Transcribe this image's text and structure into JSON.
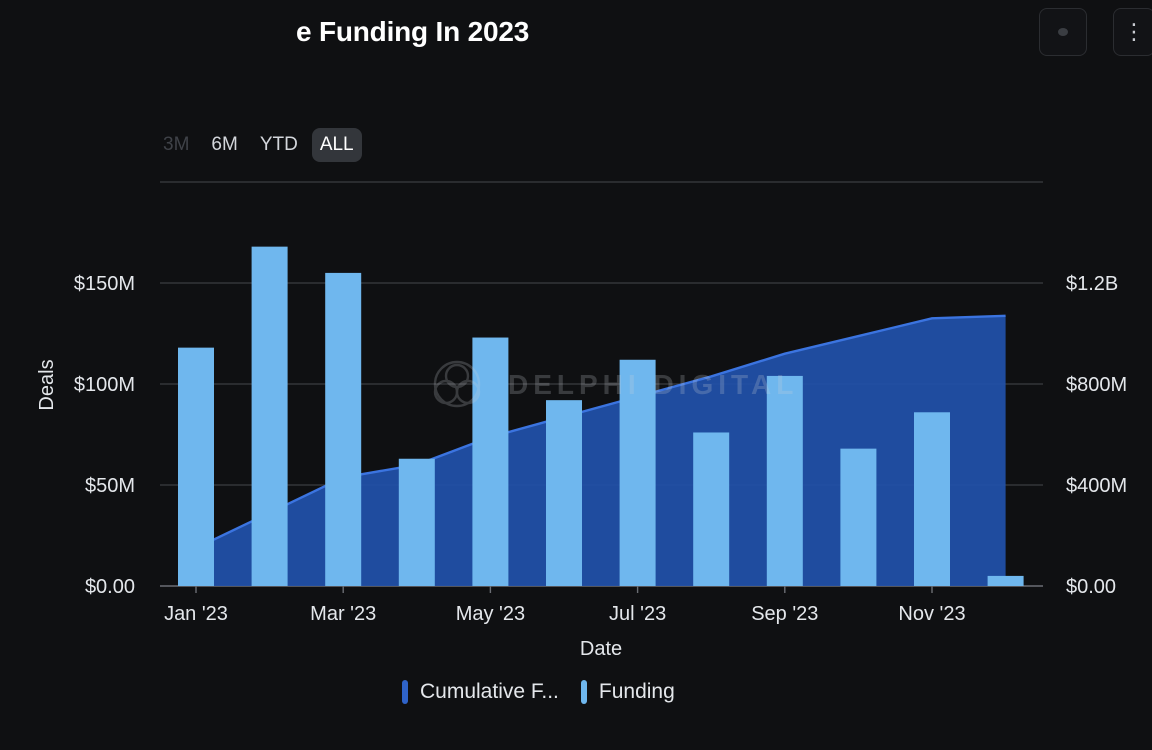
{
  "header": {
    "title": "e Funding In 2023",
    "button_a_icon": "dot-icon",
    "button_b_icon": "kebab-menu-icon"
  },
  "range_tabs": [
    {
      "label": "3M",
      "state": "disabled"
    },
    {
      "label": "6M",
      "state": "normal"
    },
    {
      "label": "YTD",
      "state": "normal"
    },
    {
      "label": "ALL",
      "state": "active"
    }
  ],
  "watermark": "DELPHI DIGITAL",
  "chart_data": {
    "type": "bar",
    "title": "",
    "xlabel": "Date",
    "ylabel_left": "Deals",
    "ylabel_right": "",
    "x_tick_labels": [
      "Jan '23",
      "Mar '23",
      "May '23",
      "Jul '23",
      "Sep '23",
      "Nov '23"
    ],
    "left_axis": {
      "ylim": [
        0,
        200
      ],
      "ticks": [
        0,
        50,
        100,
        150
      ],
      "tick_labels": [
        "$0.00",
        "$50M",
        "$100M",
        "$150M"
      ]
    },
    "right_axis": {
      "ylim": [
        0,
        1.6
      ],
      "ticks": [
        0,
        0.4,
        0.8,
        1.2
      ],
      "tick_labels": [
        "$0.00",
        "$400M",
        "$800M",
        "$1.2B"
      ]
    },
    "grid": true,
    "legend_position": "bottom-center",
    "categories": [
      "Jan '23",
      "Feb '23",
      "Mar '23",
      "Apr '23",
      "May '23",
      "Jun '23",
      "Jul '23",
      "Aug '23",
      "Sep '23",
      "Oct '23",
      "Nov '23",
      "Dec '23"
    ],
    "series": [
      {
        "name": "Funding",
        "axis": "left",
        "type": "bar",
        "color": "#6fb7ee",
        "values": [
          118,
          168,
          155,
          63,
          123,
          92,
          112,
          76,
          104,
          68,
          86,
          5
        ]
      },
      {
        "name": "Cumulative F...",
        "axis": "right",
        "type": "area",
        "color": "#2150a8",
        "line_color": "#3b74e0",
        "values": [
          0.15,
          0.29,
          0.43,
          0.48,
          0.59,
          0.67,
          0.75,
          0.83,
          0.92,
          0.99,
          1.06,
          1.07
        ]
      }
    ]
  }
}
